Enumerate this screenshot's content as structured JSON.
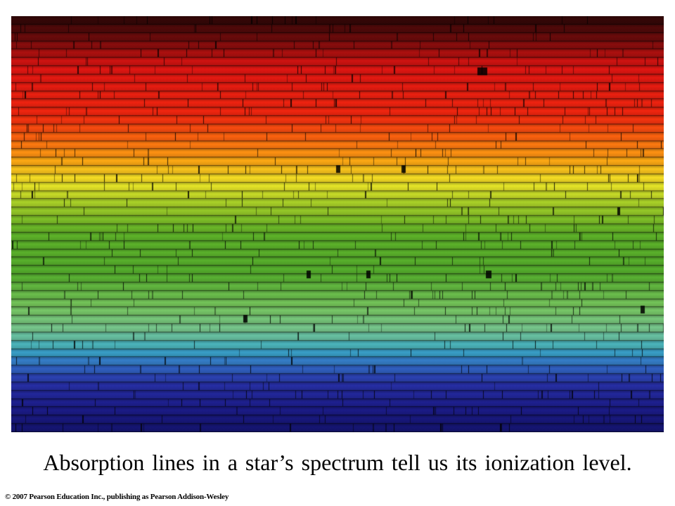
{
  "caption": "Absorption lines in a star’s spectrum tell us its ionization level.",
  "copyright": "© 2007 Pearson Education Inc., publishing as Pearson Addison-Wesley",
  "spectrum": {
    "colors": {
      "deep_red": "#3a0808",
      "red": "#f01010",
      "orange": "#ff8a10",
      "yellow": "#f5f020",
      "green": "#5cb02a",
      "light_green": "#90d070",
      "cyan": "#40b8c8",
      "blue": "#2a3ab0",
      "deep_blue": "#1a1a80"
    }
  }
}
